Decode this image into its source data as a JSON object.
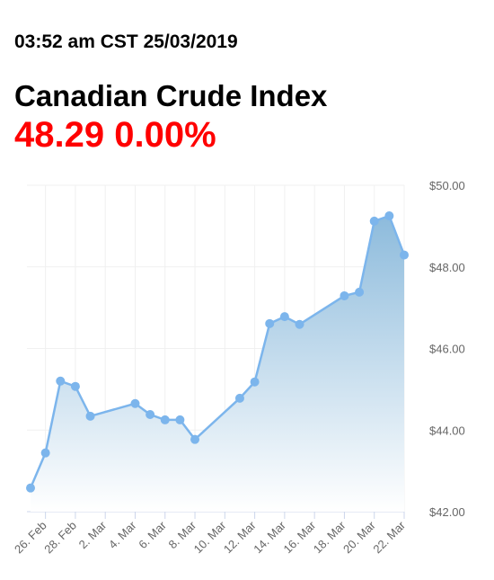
{
  "header": {
    "timestamp": "03:52 am CST 25/03/2019",
    "title": "Canadian Crude Index",
    "price": "48.29",
    "change": "0.00%"
  },
  "chart_data": {
    "type": "area",
    "color": "#7cb5ec",
    "x": [
      "25. Feb",
      "26. Feb",
      "27. Feb",
      "28. Feb",
      "1. Mar",
      "4. Mar",
      "5. Mar",
      "6. Mar",
      "7. Mar",
      "8. Mar",
      "11. Mar",
      "12. Mar",
      "13. Mar",
      "14. Mar",
      "15. Mar",
      "18. Mar",
      "19. Mar",
      "20. Mar",
      "21. Mar",
      "22. Mar"
    ],
    "values": [
      42.58,
      43.44,
      45.2,
      45.07,
      44.34,
      44.65,
      44.38,
      44.25,
      44.25,
      43.77,
      44.78,
      45.18,
      46.61,
      46.78,
      46.59,
      47.29,
      47.38,
      49.12,
      49.25,
      48.29
    ],
    "xlim": [
      "25. Feb",
      "22. Mar"
    ],
    "xticks": [
      "26. Feb",
      "28. Feb",
      "2. Mar",
      "4. Mar",
      "6. Mar",
      "8. Mar",
      "10. Mar",
      "12. Mar",
      "14. Mar",
      "16. Mar",
      "18. Mar",
      "20. Mar",
      "22. Mar"
    ],
    "ylim": [
      42,
      50
    ],
    "yticks": [
      {
        "value": 42,
        "label": "$42.00"
      },
      {
        "value": 44,
        "label": "$44.00"
      },
      {
        "value": 46,
        "label": "$46.00"
      },
      {
        "value": 48,
        "label": "$48.00"
      },
      {
        "value": 50,
        "label": "$50.00"
      }
    ],
    "grid": true
  }
}
